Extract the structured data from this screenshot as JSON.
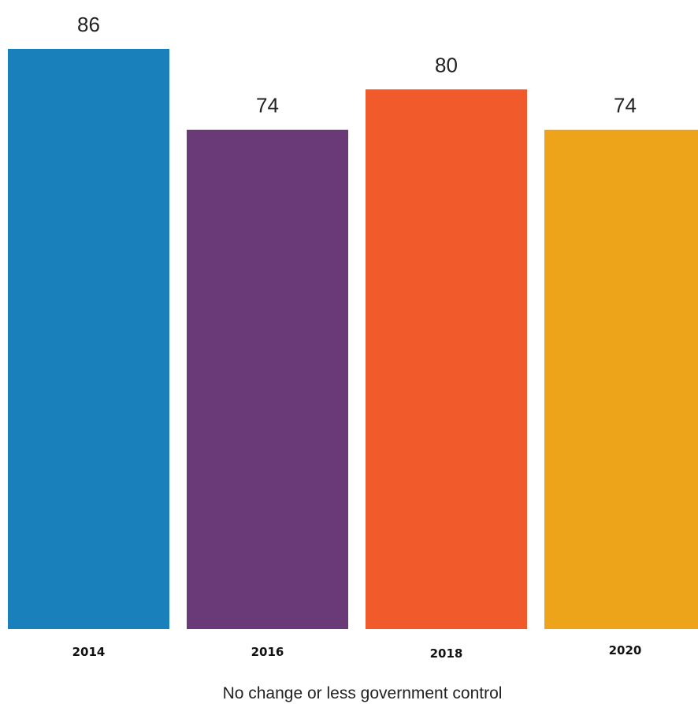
{
  "chart_data": {
    "type": "bar",
    "categories": [
      "2014",
      "2016",
      "2018",
      "2020"
    ],
    "values": [
      86,
      74,
      80,
      74
    ],
    "value_labels": [
      "86",
      "74",
      "80",
      "74"
    ],
    "xlabel": "No change or less government control",
    "ylabel": "",
    "ylim": [
      0,
      86
    ],
    "grid": false,
    "colors": [
      "#1a80bb",
      "#6a3a78",
      "#f15a2b",
      "#eda41a"
    ]
  }
}
